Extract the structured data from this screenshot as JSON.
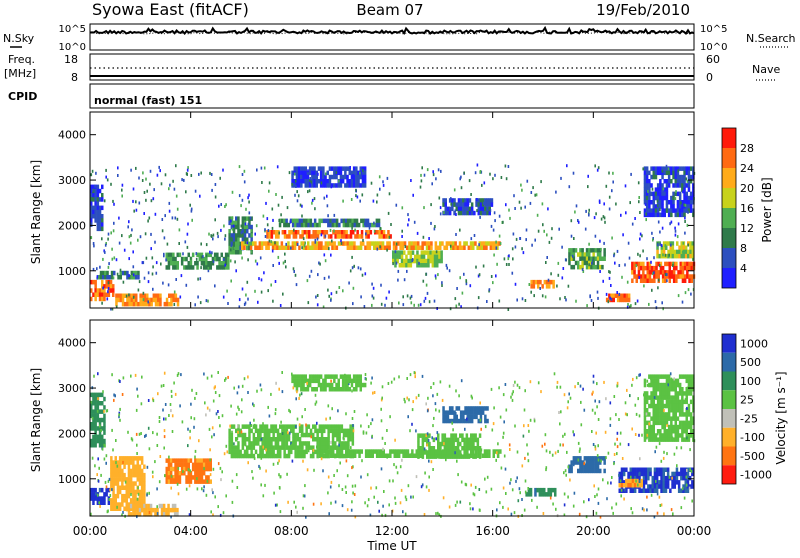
{
  "header": {
    "station": "Syowa East (fitACF)",
    "beam": "Beam 07",
    "date": "19/Feb/2010"
  },
  "top_panels": {
    "nsky_label": "N.Sky",
    "nsky_ticks": [
      "10^5",
      "10^0"
    ],
    "nsearch_label": "N.Search",
    "nsearch_ticks": [
      "10^5",
      "10^0"
    ],
    "freq_label": "Freq.",
    "freq_unit": "[MHz]",
    "freq_ticks": [
      "18",
      "8"
    ],
    "nave_label": "Nave",
    "nave_ticks": [
      "60",
      "0"
    ],
    "cpid_label": "CPID",
    "cpid_value": "normal (fast) 151"
  },
  "chart_data": [
    {
      "type": "heatmap",
      "panel": "power",
      "ylabel": "Slant Range [km]",
      "xlabel": "",
      "x_range_hours": [
        0,
        24
      ],
      "ylim": [
        180,
        4500
      ],
      "yticks": [
        "1000",
        "2000",
        "3000",
        "4000"
      ],
      "colorbar": {
        "label": "Power [dB]",
        "ticks": [
          "4",
          "8",
          "12",
          "16",
          "20",
          "24",
          "28"
        ],
        "levels": [
          0,
          4,
          8,
          12,
          16,
          20,
          24,
          28,
          32
        ],
        "colors": [
          "#1f1fff",
          "#2c4fbf",
          "#2f7a4a",
          "#4fae52",
          "#c8d21c",
          "#ffab1a",
          "#ff6a12",
          "#ff1a0a"
        ]
      },
      "regions": [
        {
          "t0": 0.0,
          "t1": 1.0,
          "r0": 300,
          "r1": 800,
          "value": 26
        },
        {
          "t0": 0.3,
          "t1": 2.0,
          "r0": 850,
          "r1": 1000,
          "value": 10
        },
        {
          "t0": 0.0,
          "t1": 0.5,
          "r0": 1900,
          "r1": 2900,
          "value": 5
        },
        {
          "t0": 1.0,
          "t1": 3.5,
          "r0": 200,
          "r1": 500,
          "value": 24
        },
        {
          "t0": 3.0,
          "t1": 5.5,
          "r0": 1000,
          "r1": 1400,
          "value": 12
        },
        {
          "t0": 5.5,
          "t1": 6.5,
          "r0": 1400,
          "r1": 2200,
          "value": 10
        },
        {
          "t0": 6.0,
          "t1": 16.3,
          "r0": 1500,
          "r1": 1650,
          "value": 22
        },
        {
          "t0": 7.0,
          "t1": 12.0,
          "r0": 1700,
          "r1": 1900,
          "value": 26
        },
        {
          "t0": 7.5,
          "t1": 11.5,
          "r0": 1950,
          "r1": 2150,
          "value": 10
        },
        {
          "t0": 8.0,
          "t1": 11.0,
          "r0": 2800,
          "r1": 3300,
          "value": 4
        },
        {
          "t0": 12.0,
          "t1": 14.0,
          "r0": 1100,
          "r1": 1450,
          "value": 16
        },
        {
          "t0": 14.0,
          "t1": 16.0,
          "r0": 2200,
          "r1": 2600,
          "value": 6
        },
        {
          "t0": 17.5,
          "t1": 18.5,
          "r0": 600,
          "r1": 800,
          "value": 24
        },
        {
          "t0": 19.0,
          "t1": 20.5,
          "r0": 1000,
          "r1": 1500,
          "value": 14
        },
        {
          "t0": 20.5,
          "t1": 21.5,
          "r0": 300,
          "r1": 500,
          "value": 26
        },
        {
          "t0": 21.5,
          "t1": 24.0,
          "r0": 700,
          "r1": 1200,
          "value": 27
        },
        {
          "t0": 22.5,
          "t1": 24.0,
          "r0": 1300,
          "r1": 1650,
          "value": 18
        },
        {
          "t0": 22.0,
          "t1": 24.0,
          "r0": 2200,
          "r1": 3300,
          "value": 5
        }
      ]
    },
    {
      "type": "heatmap",
      "panel": "velocity",
      "ylabel": "Slant Range [km]",
      "xlabel": "Time UT",
      "x_range_hours": [
        0,
        24
      ],
      "xticks": [
        "00:00",
        "04:00",
        "08:00",
        "12:00",
        "16:00",
        "20:00",
        "00:00"
      ],
      "ylim": [
        180,
        4500
      ],
      "yticks": [
        "1000",
        "2000",
        "3000",
        "4000"
      ],
      "colorbar": {
        "label": "Velocity [m s⁻¹]",
        "ticks": [
          "1000",
          "500",
          "100",
          "25",
          "-25",
          "-100",
          "-500",
          "-1000"
        ],
        "colors": [
          "#1f2fd0",
          "#2c6aa8",
          "#2e8f5a",
          "#5bc243",
          "#c0c0b8",
          "#ffb02a",
          "#ff7412",
          "#ff1c10"
        ]
      },
      "regions": [
        {
          "t0": 0.0,
          "t1": 0.8,
          "r0": 400,
          "r1": 800,
          "value": 800
        },
        {
          "t0": 0.0,
          "t1": 0.6,
          "r0": 1700,
          "r1": 2900,
          "value": 60
        },
        {
          "t0": 0.8,
          "t1": 2.2,
          "r0": 300,
          "r1": 1500,
          "value": -300
        },
        {
          "t0": 1.5,
          "t1": 3.5,
          "r0": 200,
          "r1": 450,
          "value": -120
        },
        {
          "t0": 3.0,
          "t1": 4.8,
          "r0": 900,
          "r1": 1450,
          "value": -700
        },
        {
          "t0": 5.5,
          "t1": 10.5,
          "r0": 1500,
          "r1": 2200,
          "value": 0
        },
        {
          "t0": 9.0,
          "t1": 16.3,
          "r0": 1450,
          "r1": 1650,
          "value": 0
        },
        {
          "t0": 8.0,
          "t1": 11.0,
          "r0": 2900,
          "r1": 3300,
          "value": 0
        },
        {
          "t0": 13.0,
          "t1": 15.5,
          "r0": 1400,
          "r1": 2000,
          "value": 0
        },
        {
          "t0": 14.0,
          "t1": 15.8,
          "r0": 2200,
          "r1": 2600,
          "value": 300
        },
        {
          "t0": 17.3,
          "t1": 18.5,
          "r0": 600,
          "r1": 800,
          "value": 80
        },
        {
          "t0": 19.0,
          "t1": 20.5,
          "r0": 1100,
          "r1": 1500,
          "value": 200
        },
        {
          "t0": 21.0,
          "t1": 24.0,
          "r0": 700,
          "r1": 1250,
          "value": 600
        },
        {
          "t0": 21.0,
          "t1": 22.0,
          "r0": 850,
          "r1": 1000,
          "value": -400
        },
        {
          "t0": 22.0,
          "t1": 24.0,
          "r0": 1800,
          "r1": 3300,
          "value": 0
        }
      ]
    }
  ]
}
